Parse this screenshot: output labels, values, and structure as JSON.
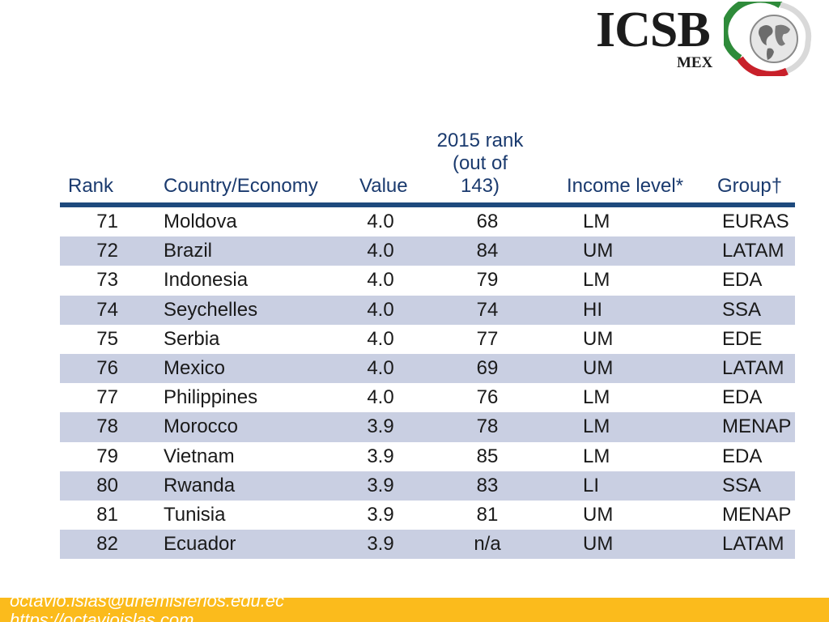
{
  "logo": {
    "text": "ICSB",
    "sub": "MEX"
  },
  "table": {
    "headers": {
      "rank": "Rank",
      "country": "Country/Economy",
      "value": "Value",
      "prev_rank_line1": "2015 rank",
      "prev_rank_line2": "(out of 143)",
      "income": "Income level*",
      "group": "Group†"
    },
    "rows": [
      {
        "rank": "71",
        "country": "Moldova",
        "value": "4.0",
        "prev": "68",
        "income": "LM",
        "group": "EURAS"
      },
      {
        "rank": "72",
        "country": "Brazil",
        "value": "4.0",
        "prev": "84",
        "income": "UM",
        "group": "LATAM"
      },
      {
        "rank": "73",
        "country": "Indonesia",
        "value": "4.0",
        "prev": "79",
        "income": "LM",
        "group": "EDA"
      },
      {
        "rank": "74",
        "country": "Seychelles",
        "value": "4.0",
        "prev": "74",
        "income": "HI",
        "group": "SSA"
      },
      {
        "rank": "75",
        "country": "Serbia",
        "value": "4.0",
        "prev": "77",
        "income": "UM",
        "group": "EDE"
      },
      {
        "rank": "76",
        "country": "Mexico",
        "value": "4.0",
        "prev": "69",
        "income": "UM",
        "group": "LATAM"
      },
      {
        "rank": "77",
        "country": "Philippines",
        "value": "4.0",
        "prev": "76",
        "income": "LM",
        "group": "EDA"
      },
      {
        "rank": "78",
        "country": "Morocco",
        "value": "3.9",
        "prev": "78",
        "income": "LM",
        "group": "MENAP"
      },
      {
        "rank": "79",
        "country": "Vietnam",
        "value": "3.9",
        "prev": "85",
        "income": "LM",
        "group": "EDA"
      },
      {
        "rank": "80",
        "country": "Rwanda",
        "value": "3.9",
        "prev": "83",
        "income": "LI",
        "group": "SSA"
      },
      {
        "rank": "81",
        "country": "Tunisia",
        "value": "3.9",
        "prev": "81",
        "income": "UM",
        "group": "MENAP"
      },
      {
        "rank": "82",
        "country": "Ecuador",
        "value": "3.9",
        "prev": "n/a",
        "income": "UM",
        "group": "LATAM"
      }
    ]
  },
  "footer": {
    "email": "octavio.islas@uhemisferios.edu.ec",
    "url": "https://octavioislas.com"
  },
  "colors": {
    "header_text": "#1a3a6e",
    "header_rule": "#1e4a7d",
    "row_alt": "#c9cfe2",
    "footer_bg": "#fbbb1c",
    "logo_green": "#2e8b3a",
    "logo_red": "#c8202a"
  }
}
